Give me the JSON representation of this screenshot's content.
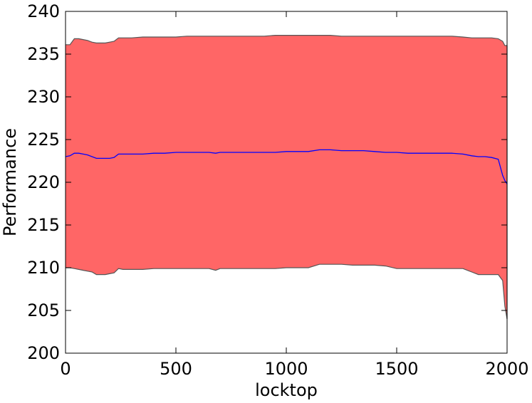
{
  "chart_data": {
    "type": "area",
    "xlabel": "locktop",
    "ylabel": "Performance",
    "xlim": [
      0,
      2000
    ],
    "ylim": [
      200,
      240
    ],
    "xticks": [
      0,
      500,
      1000,
      1500,
      2000
    ],
    "yticks": [
      200,
      205,
      210,
      215,
      220,
      225,
      230,
      235,
      240
    ],
    "grid": false,
    "colors": {
      "band_fill": "#ff6666",
      "band_edge": "#555555",
      "mean_line": "#0000ff"
    },
    "x": [
      0,
      20,
      40,
      60,
      80,
      100,
      120,
      140,
      160,
      180,
      200,
      220,
      240,
      260,
      300,
      350,
      400,
      450,
      500,
      550,
      600,
      650,
      680,
      700,
      750,
      800,
      850,
      900,
      950,
      1000,
      1050,
      1100,
      1150,
      1200,
      1250,
      1300,
      1350,
      1400,
      1450,
      1500,
      1550,
      1600,
      1650,
      1700,
      1750,
      1800,
      1840,
      1870,
      1900,
      1930,
      1960,
      1980,
      1990,
      2000
    ],
    "series": [
      {
        "role": "mean",
        "values": [
          223.0,
          223.1,
          223.4,
          223.4,
          223.3,
          223.2,
          223.0,
          222.8,
          222.8,
          222.8,
          222.8,
          222.9,
          223.3,
          223.3,
          223.3,
          223.3,
          223.4,
          223.4,
          223.5,
          223.5,
          223.5,
          223.5,
          223.4,
          223.5,
          223.5,
          223.5,
          223.5,
          223.5,
          223.5,
          223.6,
          223.6,
          223.6,
          223.8,
          223.8,
          223.7,
          223.7,
          223.7,
          223.6,
          223.5,
          223.5,
          223.4,
          223.4,
          223.4,
          223.4,
          223.4,
          223.3,
          223.1,
          223.0,
          223.0,
          222.9,
          222.7,
          220.8,
          220.2,
          219.8
        ]
      },
      {
        "role": "upper",
        "values": [
          236.1,
          236.1,
          236.8,
          236.8,
          236.7,
          236.6,
          236.4,
          236.3,
          236.3,
          236.3,
          236.4,
          236.5,
          236.9,
          236.9,
          236.9,
          237.0,
          237.0,
          237.0,
          237.0,
          237.1,
          237.1,
          237.1,
          237.1,
          237.1,
          237.1,
          237.1,
          237.1,
          237.1,
          237.2,
          237.2,
          237.2,
          237.2,
          237.2,
          237.2,
          237.1,
          237.1,
          237.1,
          237.1,
          237.1,
          237.1,
          237.1,
          237.1,
          237.1,
          237.1,
          237.1,
          237.0,
          236.9,
          236.9,
          236.9,
          236.9,
          236.8,
          236.5,
          236.0,
          236.0
        ]
      },
      {
        "role": "lower",
        "values": [
          210.0,
          210.0,
          209.9,
          209.8,
          209.7,
          209.6,
          209.5,
          209.2,
          209.2,
          209.2,
          209.3,
          209.4,
          209.9,
          209.8,
          209.8,
          209.8,
          209.9,
          209.9,
          209.9,
          209.9,
          209.9,
          209.9,
          209.7,
          209.9,
          209.9,
          209.9,
          209.9,
          209.9,
          209.9,
          210.0,
          210.0,
          210.0,
          210.4,
          210.4,
          210.4,
          210.3,
          210.3,
          210.3,
          210.2,
          209.9,
          209.9,
          209.9,
          209.9,
          209.9,
          209.9,
          209.9,
          209.5,
          209.2,
          209.2,
          209.2,
          209.2,
          208.5,
          205.5,
          204.0
        ]
      }
    ]
  }
}
